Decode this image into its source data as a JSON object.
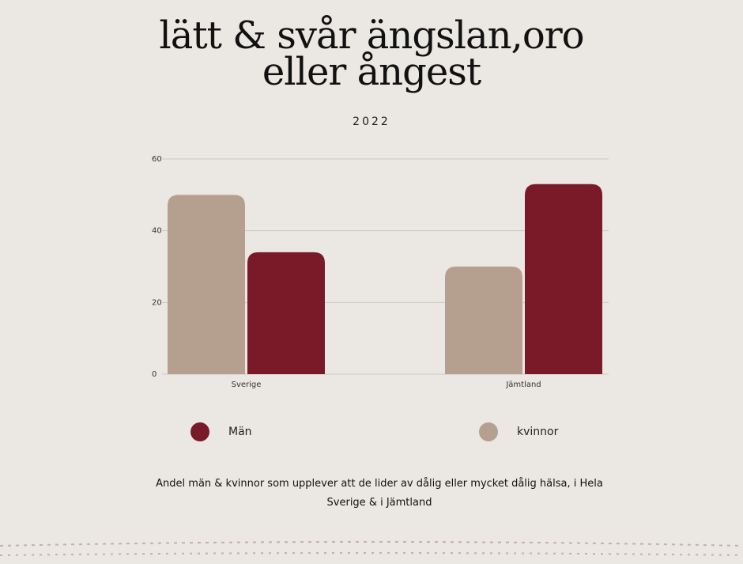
{
  "chart_data": {
    "type": "bar",
    "title": "lätt & svår ängslan,oro eller ångest",
    "subtitle": "2022",
    "categories": [
      "Sverige",
      "Jämtland"
    ],
    "series": [
      {
        "name": "kvinnor",
        "color": "#b5a08f",
        "values": [
          50,
          30
        ]
      },
      {
        "name": "Män",
        "color": "#7a1a28",
        "values": [
          34,
          53
        ]
      }
    ],
    "ylim": [
      0,
      60
    ],
    "yticks": [
      0,
      20,
      40,
      60
    ],
    "grid": true,
    "caption": "Andel män & kvinnor som upplever att de lider av dålig eller mycket dålig hälsa, i Hela Sverige & i Jämtland"
  }
}
